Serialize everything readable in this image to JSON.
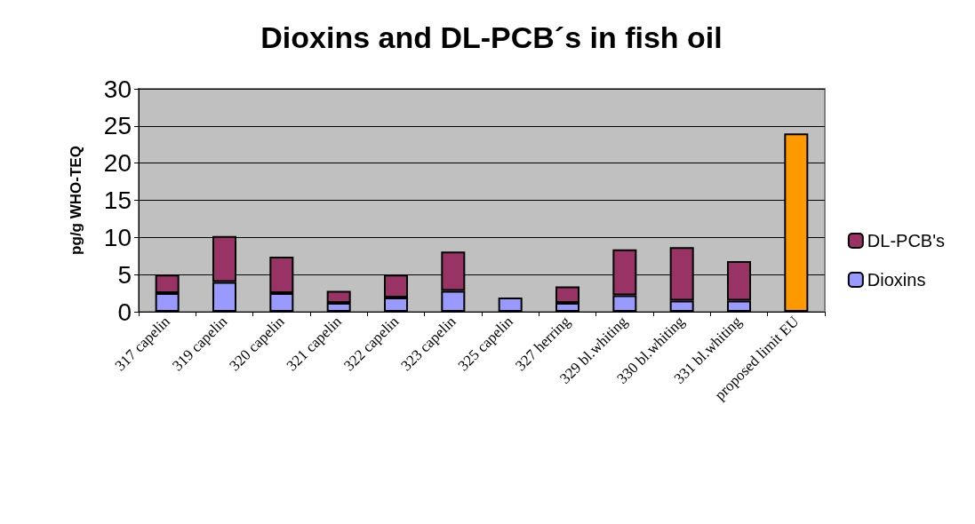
{
  "chart_data": {
    "type": "bar",
    "title": "Dioxins and DL-PCB´s in fish oil",
    "ylabel": "pg/g WHO-TEQ",
    "categories": [
      "317 capelin",
      "319 capelin",
      "320 capelin",
      "321 capelin",
      "322 capelin",
      "323 capelin",
      "325 capelin",
      "327 herring",
      "329 bl.whiting",
      "330 bl.whiting",
      "331 bl.whiting",
      "proposed limit EU"
    ],
    "stacked": true,
    "series": [
      {
        "name": "Dioxins",
        "color": "#9999ff",
        "values": [
          2.5,
          4.0,
          2.5,
          1.2,
          1.9,
          2.8,
          1.9,
          1.2,
          2.2,
          1.5,
          1.5,
          null
        ]
      },
      {
        "name": "DL-PCB's",
        "color": "#993366",
        "values": [
          2.5,
          6.2,
          4.9,
          1.6,
          3.1,
          5.3,
          null,
          2.2,
          6.2,
          7.2,
          5.3,
          null
        ]
      },
      {
        "color": "#ff9900",
        "values": [
          null,
          null,
          null,
          null,
          null,
          null,
          null,
          null,
          null,
          null,
          null,
          24
        ]
      }
    ],
    "ylim": [
      0,
      30
    ],
    "yticks": [
      0,
      5,
      10,
      15,
      20,
      25,
      30
    ],
    "grid": "y",
    "legend": "right"
  }
}
